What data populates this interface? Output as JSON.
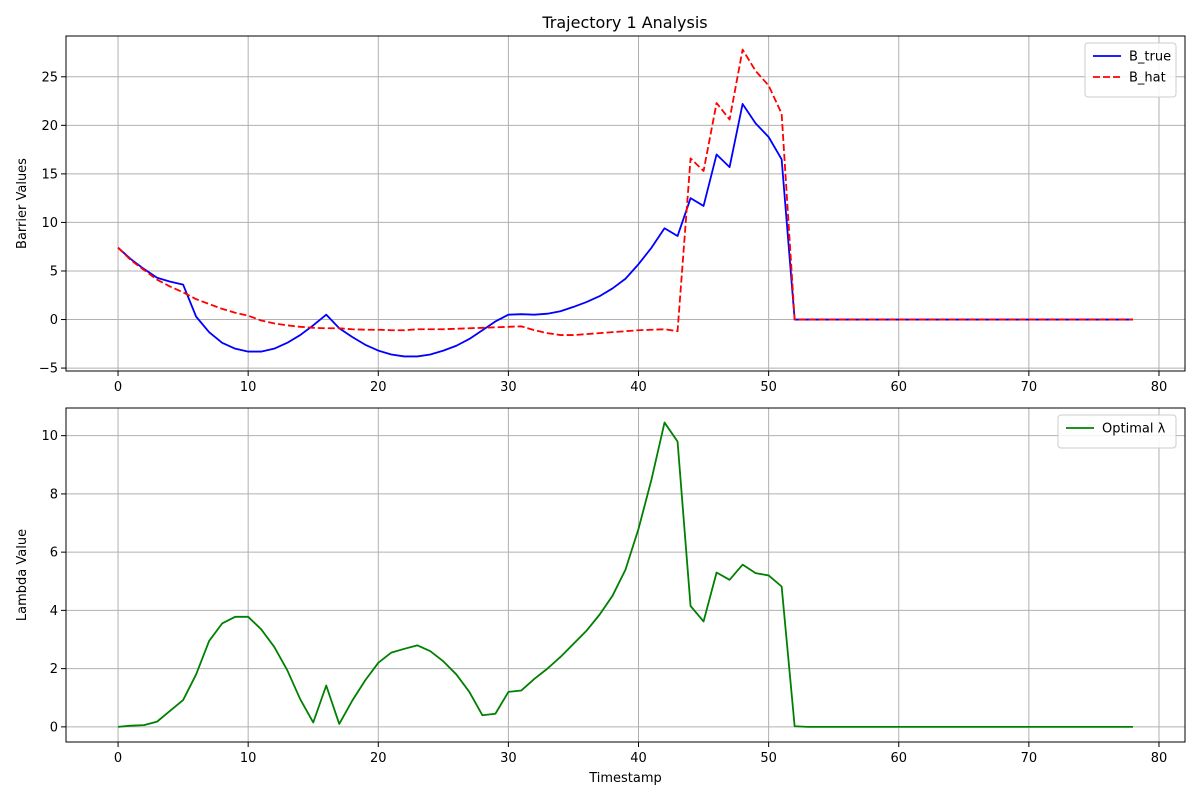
{
  "chart_data": [
    {
      "type": "line",
      "title": "Trajectory 1 Analysis",
      "xlabel": "",
      "ylabel": "Barrier Values",
      "xlim": [
        -4,
        82
      ],
      "ylim": [
        -5.3,
        29.2
      ],
      "xticks": [
        0,
        10,
        20,
        30,
        40,
        50,
        60,
        70,
        80
      ],
      "yticks": [
        -5,
        0,
        5,
        10,
        15,
        20,
        25
      ],
      "grid": true,
      "legend": "top-right",
      "series": [
        {
          "name": "B_true",
          "color": "#0000ff",
          "dash": "solid",
          "x": [
            0,
            1,
            2,
            3,
            4,
            5,
            6,
            7,
            8,
            9,
            10,
            11,
            12,
            13,
            14,
            15,
            16,
            17,
            18,
            19,
            20,
            21,
            22,
            23,
            24,
            25,
            26,
            27,
            28,
            29,
            30,
            31,
            32,
            33,
            34,
            35,
            36,
            37,
            38,
            39,
            40,
            41,
            42,
            43,
            44,
            45,
            46,
            47,
            48,
            49,
            50,
            51,
            52,
            53,
            54,
            55,
            56,
            57,
            58,
            59,
            60,
            61,
            62,
            63,
            64,
            65,
            66,
            67,
            68,
            69,
            70,
            71,
            72,
            73,
            74,
            75,
            76,
            77,
            78
          ],
          "values": [
            7.4,
            6.2,
            5.2,
            4.3,
            3.9,
            3.6,
            0.3,
            -1.3,
            -2.4,
            -3.0,
            -3.3,
            -3.3,
            -3.0,
            -2.4,
            -1.6,
            -0.6,
            0.5,
            -0.9,
            -1.8,
            -2.6,
            -3.2,
            -3.6,
            -3.8,
            -3.8,
            -3.6,
            -3.2,
            -2.7,
            -2.0,
            -1.1,
            -0.2,
            0.5,
            0.55,
            0.5,
            0.6,
            0.85,
            1.3,
            1.8,
            2.4,
            3.2,
            4.2,
            5.7,
            7.4,
            9.4,
            8.6,
            12.5,
            11.7,
            17.0,
            15.7,
            22.2,
            20.2,
            18.8,
            16.5,
            0,
            0,
            0,
            0,
            0,
            0,
            0,
            0,
            0,
            0,
            0,
            0,
            0,
            0,
            0,
            0,
            0,
            0,
            0,
            0,
            0,
            0,
            0,
            0,
            0,
            0,
            0
          ]
        },
        {
          "name": "B_hat",
          "color": "#ff0000",
          "dash": "dashed",
          "x": [
            0,
            1,
            2,
            3,
            4,
            5,
            6,
            7,
            8,
            9,
            10,
            11,
            12,
            13,
            14,
            15,
            16,
            17,
            18,
            19,
            20,
            21,
            22,
            23,
            24,
            25,
            26,
            27,
            28,
            29,
            30,
            31,
            32,
            33,
            34,
            35,
            36,
            37,
            38,
            39,
            40,
            41,
            42,
            43,
            44,
            45,
            46,
            47,
            48,
            49,
            50,
            51,
            52,
            53,
            54,
            55,
            56,
            57,
            58,
            59,
            60,
            61,
            62,
            63,
            64,
            65,
            66,
            67,
            68,
            69,
            70,
            71,
            72,
            73,
            74,
            75,
            76,
            77,
            78
          ],
          "values": [
            7.4,
            6.1,
            5.1,
            4.1,
            3.4,
            2.8,
            2.1,
            1.6,
            1.1,
            0.7,
            0.4,
            -0.1,
            -0.4,
            -0.6,
            -0.75,
            -0.85,
            -0.9,
            -0.9,
            -1.0,
            -1.05,
            -1.05,
            -1.1,
            -1.1,
            -1.0,
            -1.0,
            -1.0,
            -0.95,
            -0.9,
            -0.85,
            -0.8,
            -0.75,
            -0.7,
            -1.1,
            -1.4,
            -1.6,
            -1.6,
            -1.5,
            -1.4,
            -1.3,
            -1.2,
            -1.1,
            -1.05,
            -1.0,
            -1.2,
            16.6,
            15.3,
            22.3,
            20.6,
            27.8,
            25.6,
            24.1,
            21.2,
            0,
            0,
            0,
            0,
            0,
            0,
            0,
            0,
            0,
            0,
            0,
            0,
            0,
            0,
            0,
            0,
            0,
            0,
            0,
            0,
            0,
            0,
            0,
            0,
            0,
            0,
            0
          ]
        }
      ]
    },
    {
      "type": "line",
      "title": "",
      "xlabel": "Timestamp",
      "ylabel": "Lambda Value",
      "xlim": [
        -4,
        82
      ],
      "ylim": [
        -0.52,
        10.95
      ],
      "xticks": [
        0,
        10,
        20,
        30,
        40,
        50,
        60,
        70,
        80
      ],
      "yticks": [
        0,
        2,
        4,
        6,
        8,
        10
      ],
      "grid": true,
      "legend": "top-right",
      "series": [
        {
          "name": "Optimal λ",
          "color": "#008000",
          "dash": "solid",
          "x": [
            0,
            1,
            2,
            3,
            4,
            5,
            6,
            7,
            8,
            9,
            10,
            11,
            12,
            13,
            14,
            15,
            16,
            17,
            18,
            19,
            20,
            21,
            22,
            23,
            24,
            25,
            26,
            27,
            28,
            29,
            30,
            31,
            32,
            33,
            34,
            35,
            36,
            37,
            38,
            39,
            40,
            41,
            42,
            43,
            44,
            45,
            46,
            47,
            48,
            49,
            50,
            51,
            52,
            53,
            54,
            55,
            56,
            57,
            58,
            59,
            60,
            61,
            62,
            63,
            64,
            65,
            66,
            67,
            68,
            69,
            70,
            71,
            72,
            73,
            74,
            75,
            76,
            77,
            78
          ],
          "values": [
            0.0,
            0.04,
            0.06,
            0.18,
            0.55,
            0.92,
            1.8,
            2.95,
            3.55,
            3.78,
            3.78,
            3.35,
            2.75,
            1.95,
            0.95,
            0.15,
            1.42,
            0.1,
            0.9,
            1.6,
            2.2,
            2.55,
            2.68,
            2.8,
            2.6,
            2.25,
            1.8,
            1.2,
            0.4,
            0.45,
            1.2,
            1.25,
            1.65,
            2.0,
            2.4,
            2.85,
            3.3,
            3.85,
            4.5,
            5.4,
            6.8,
            8.5,
            10.45,
            9.8,
            4.15,
            3.62,
            5.3,
            5.05,
            5.57,
            5.28,
            5.2,
            4.82,
            0.02,
            0,
            0,
            0,
            0,
            0,
            0,
            0,
            0,
            0,
            0,
            0,
            0,
            0,
            0,
            0,
            0,
            0,
            0,
            0,
            0,
            0,
            0,
            0,
            0,
            0,
            0
          ]
        }
      ]
    }
  ]
}
